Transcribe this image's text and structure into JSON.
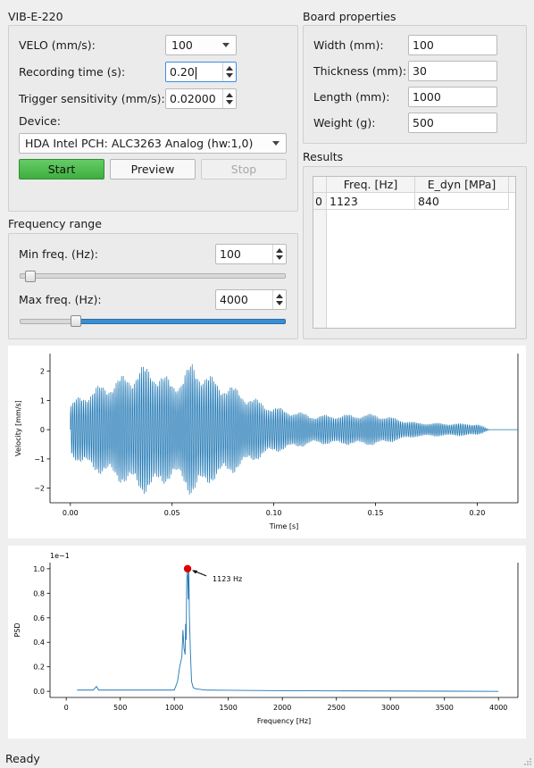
{
  "app": {
    "group_title": "VIB-E-220"
  },
  "velo": {
    "label": "VELO (mm/s):",
    "value": "100"
  },
  "recording": {
    "label": "Recording time (s):",
    "value": "0.20"
  },
  "trigger": {
    "label": "Trigger sensitivity (mm/s):",
    "value": "0.02000"
  },
  "device": {
    "label": "Device:",
    "value": "HDA Intel PCH: ALC3263 Analog (hw:1,0)"
  },
  "buttons": {
    "start": "Start",
    "preview": "Preview",
    "stop": "Stop"
  },
  "freq_range": {
    "title": "Frequency range",
    "min_label": "Min freq. (Hz):",
    "min_value": "100",
    "max_label": "Max freq. (Hz):",
    "max_value": "4000",
    "min_slider_fraction": 0.02,
    "max_slider_fraction": 0.2
  },
  "board": {
    "title": "Board properties",
    "width_label": "Width (mm):",
    "width_value": "100",
    "thickness_label": "Thickness (mm):",
    "thickness_value": "30",
    "length_label": "Length (mm):",
    "length_value": "1000",
    "weight_label": "Weight (g):",
    "weight_value": "500"
  },
  "results": {
    "title": "Results",
    "columns": [
      "Freq. [Hz]",
      "E_dyn [MPa]"
    ],
    "rows": [
      {
        "index": "0",
        "freq": "1123",
        "edyn": "840"
      }
    ]
  },
  "status": "Ready",
  "colors": {
    "accent": "#3a8fd2",
    "line": "#1f77b4",
    "marker": "#dd0000",
    "start": "#4cbb4c"
  },
  "chart_data": [
    {
      "type": "line",
      "xlabel": "Time [s]",
      "ylabel": "Velocity [mm/s]",
      "xlim": [
        -0.01,
        0.22
      ],
      "ylim": [
        -2.5,
        2.6
      ],
      "xticks": [
        "0.00",
        "0.05",
        "0.10",
        "0.15",
        "0.20"
      ],
      "xtick_values": [
        0,
        0.05,
        0.1,
        0.15,
        0.2
      ],
      "yticks": [
        "−2",
        "−1",
        "0",
        "1",
        "2"
      ],
      "ytick_values": [
        -2,
        -1,
        0,
        1,
        2
      ],
      "envelope": {
        "t": [
          0.0,
          0.005,
          0.01,
          0.02,
          0.03,
          0.035,
          0.04,
          0.05,
          0.055,
          0.06,
          0.07,
          0.08,
          0.09,
          0.1,
          0.12,
          0.15,
          0.17,
          0.2,
          0.206,
          0.22
        ],
        "amp": [
          0.9,
          1.2,
          1.4,
          1.7,
          2.0,
          2.2,
          2.2,
          1.7,
          1.9,
          2.35,
          1.8,
          1.5,
          1.1,
          0.8,
          0.5,
          0.55,
          0.25,
          0.2,
          0.0,
          0.0
        ]
      }
    },
    {
      "type": "line",
      "xlabel": "Frequency [Hz]",
      "ylabel": "PSD",
      "scale_label": "1e−1",
      "xlim": [
        -150,
        4180
      ],
      "ylim": [
        -0.05,
        1.05
      ],
      "xticks": [
        "0",
        "500",
        "1000",
        "1500",
        "2000",
        "2500",
        "3000",
        "3500",
        "4000"
      ],
      "xtick_values": [
        0,
        500,
        1000,
        1500,
        2000,
        2500,
        3000,
        3500,
        4000
      ],
      "yticks": [
        "0.0",
        "0.2",
        "0.4",
        "0.6",
        "0.8",
        "1.0"
      ],
      "ytick_values": [
        0,
        0.2,
        0.4,
        0.6,
        0.8,
        1.0
      ],
      "x": [
        100,
        250,
        280,
        300,
        330,
        600,
        1000,
        1030,
        1050,
        1070,
        1080,
        1090,
        1100,
        1105,
        1110,
        1115,
        1123,
        1130,
        1135,
        1140,
        1150,
        1160,
        1175,
        1200,
        1300,
        2000,
        4000
      ],
      "y": [
        0.01,
        0.01,
        0.04,
        0.01,
        0.01,
        0.01,
        0.01,
        0.08,
        0.2,
        0.28,
        0.5,
        0.35,
        0.3,
        0.55,
        0.42,
        0.9,
        1.0,
        0.75,
        0.98,
        0.6,
        0.3,
        0.08,
        0.03,
        0.02,
        0.01,
        0.005,
        0.0
      ],
      "peak": {
        "x": 1123,
        "y": 1.0,
        "label": "1123 Hz"
      }
    }
  ]
}
